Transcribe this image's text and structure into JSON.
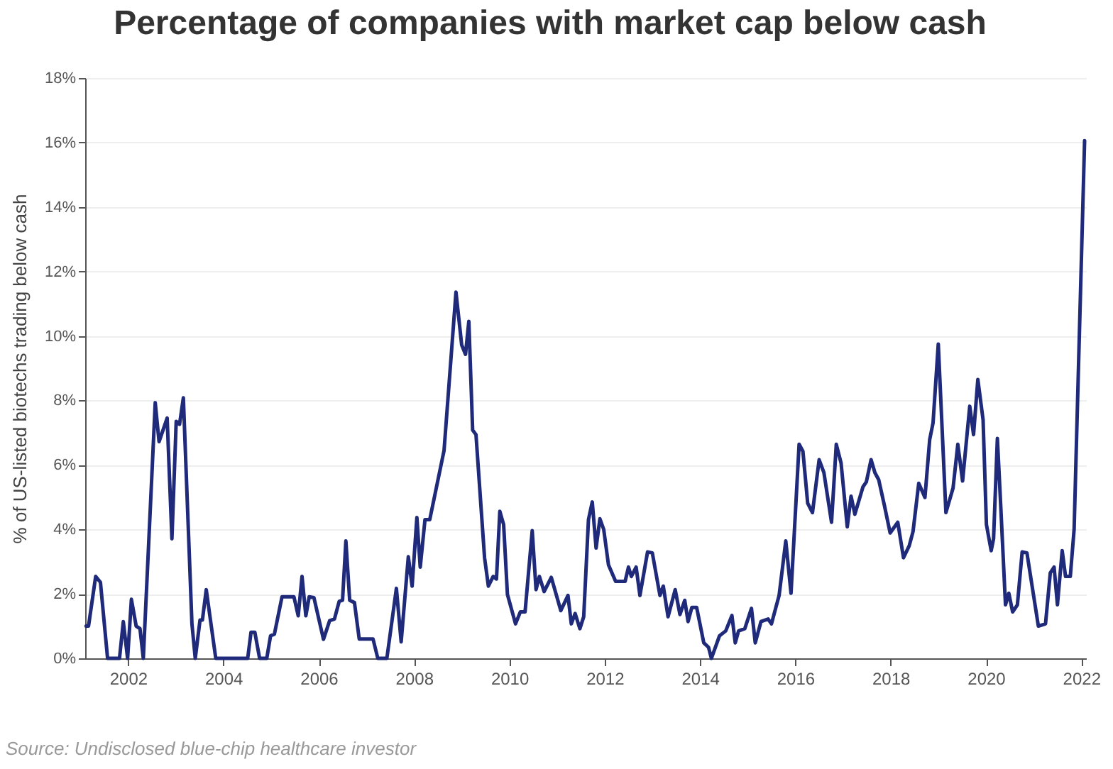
{
  "chart_data": {
    "type": "line",
    "title": "Percentage of companies with market cap below cash",
    "ylabel": "% of US-listed biotechs trading below cash",
    "annotations": [
      "Source: Undisclosed blue-chip healthcare investor"
    ],
    "xlim": [
      2001.1,
      2022.1
    ],
    "xticks": [
      2002,
      2004,
      2006,
      2008,
      2010,
      2012,
      2014,
      2016,
      2018,
      2020,
      2022
    ],
    "ylim": [
      0,
      18
    ],
    "yticks": [
      {
        "value": 0,
        "label": "0%"
      },
      {
        "value": 2,
        "label": "2%"
      },
      {
        "value": 4,
        "label": "4%"
      },
      {
        "value": 6,
        "label": "6%"
      },
      {
        "value": 8,
        "label": "8%"
      },
      {
        "value": 10,
        "label": "10%"
      },
      {
        "value": 12,
        "label": "12%"
      },
      {
        "value": 14,
        "label": "14%"
      },
      {
        "value": 16,
        "label": "16%"
      },
      {
        "value": 18,
        "label": "18%"
      }
    ],
    "grid": "y",
    "marker": "none",
    "line_style": "solid",
    "series": [
      {
        "color": "#1f2a7a",
        "x": [
          2001.12,
          2001.17,
          2001.32,
          2001.42,
          2001.57,
          2001.82,
          2001.9,
          2001.99,
          2002.07,
          2002.17,
          2002.25,
          2002.32,
          2002.57,
          2002.65,
          2002.82,
          2002.92,
          2003.01,
          2003.08,
          2003.16,
          2003.34,
          2003.41,
          2003.51,
          2003.56,
          2003.64,
          2003.84,
          2004.51,
          2004.58,
          2004.66,
          2004.76,
          2004.91,
          2004.99,
          2005.07,
          2005.23,
          2005.48,
          2005.57,
          2005.65,
          2005.73,
          2005.8,
          2005.9,
          2006.1,
          2006.23,
          2006.33,
          2006.43,
          2006.5,
          2006.57,
          2006.65,
          2006.75,
          2006.85,
          2007.14,
          2007.24,
          2007.43,
          2007.63,
          2007.73,
          2007.88,
          2007.96,
          2008.06,
          2008.13,
          2008.23,
          2008.33,
          2008.63,
          2008.88,
          2009.0,
          2009.08,
          2009.15,
          2009.23,
          2009.3,
          2009.48,
          2009.56,
          2009.66,
          2009.73,
          2009.8,
          2009.88,
          2009.96,
          2010.13,
          2010.23,
          2010.33,
          2010.48,
          2010.56,
          2010.63,
          2010.73,
          2010.88,
          2011.08,
          2011.23,
          2011.3,
          2011.38,
          2011.48,
          2011.56,
          2011.66,
          2011.74,
          2011.82,
          2011.9,
          2011.98,
          2012.08,
          2012.23,
          2012.43,
          2012.5,
          2012.56,
          2012.66,
          2012.74,
          2012.9,
          2013.0,
          2013.16,
          2013.23,
          2013.33,
          2013.48,
          2013.58,
          2013.68,
          2013.75,
          2013.83,
          2013.93,
          2014.08,
          2014.18,
          2014.24,
          2014.41,
          2014.54,
          2014.67,
          2014.74,
          2014.81,
          2014.94,
          2015.08,
          2015.16,
          2015.28,
          2015.43,
          2015.5,
          2015.66,
          2015.8,
          2015.91,
          2016.08,
          2016.16,
          2016.26,
          2016.36,
          2016.5,
          2016.6,
          2016.76,
          2016.86,
          2016.96,
          2017.09,
          2017.17,
          2017.25,
          2017.42,
          2017.49,
          2017.59,
          2017.67,
          2017.75,
          2017.87,
          2017.99,
          2018.15,
          2018.27,
          2018.39,
          2018.47,
          2018.59,
          2018.72,
          2018.82,
          2018.89,
          2019.0,
          2019.16,
          2019.31,
          2019.41,
          2019.51,
          2019.66,
          2019.74,
          2019.83,
          2019.94,
          2020.01,
          2020.11,
          2020.16,
          2020.24,
          2020.31,
          2020.41,
          2020.48,
          2020.56,
          2020.66,
          2020.76,
          2020.86,
          2021.1,
          2021.25,
          2021.35,
          2021.43,
          2021.5,
          2021.6,
          2021.67,
          2021.77,
          2021.85,
          2022.07
        ],
        "values": [
          1.0,
          1.0,
          2.54,
          2.36,
          0,
          0,
          1.14,
          0,
          1.83,
          1.0,
          0.92,
          0,
          7.93,
          6.72,
          7.45,
          3.71,
          7.35,
          7.26,
          8.08,
          1.07,
          0,
          1.19,
          1.19,
          2.13,
          0,
          0,
          0.81,
          0.81,
          0,
          0,
          0.7,
          0.75,
          1.91,
          1.91,
          1.32,
          2.54,
          1.32,
          1.91,
          1.88,
          0.59,
          1.17,
          1.22,
          1.77,
          1.8,
          3.64,
          1.8,
          1.73,
          0.6,
          0.6,
          0,
          0,
          2.17,
          0.51,
          3.15,
          2.24,
          4.37,
          2.83,
          4.3,
          4.3,
          6.45,
          11.36,
          9.72,
          9.43,
          10.45,
          7.08,
          6.94,
          3.12,
          2.24,
          2.54,
          2.46,
          4.56,
          4.15,
          1.98,
          1.07,
          1.44,
          1.44,
          3.96,
          2.13,
          2.54,
          2.07,
          2.51,
          1.48,
          1.95,
          1.07,
          1.39,
          0.92,
          1.29,
          4.3,
          4.85,
          3.42,
          4.33,
          4.0,
          2.9,
          2.39,
          2.39,
          2.83,
          2.54,
          2.83,
          1.95,
          3.3,
          3.27,
          1.95,
          2.24,
          1.29,
          2.13,
          1.36,
          1.8,
          1.14,
          1.58,
          1.58,
          0.48,
          0.34,
          0,
          0.7,
          0.85,
          1.33,
          0.48,
          0.85,
          0.92,
          1.55,
          0.48,
          1.14,
          1.22,
          1.07,
          1.95,
          3.64,
          2.02,
          6.64,
          6.42,
          4.81,
          4.52,
          6.16,
          5.76,
          4.22,
          6.64,
          6.06,
          4.08,
          5.03,
          4.47,
          5.32,
          5.47,
          6.16,
          5.76,
          5.54,
          4.74,
          3.89,
          4.22,
          3.12,
          3.49,
          3.93,
          5.43,
          4.99,
          6.79,
          7.3,
          9.75,
          4.52,
          5.28,
          6.64,
          5.5,
          7.82,
          6.94,
          8.65,
          7.4,
          4.15,
          3.34,
          3.71,
          6.82,
          4.74,
          1.66,
          2.02,
          1.44,
          1.66,
          3.3,
          3.27,
          1.0,
          1.07,
          2.65,
          2.83,
          1.66,
          3.34,
          2.54,
          2.54,
          4.0,
          16.06
        ]
      }
    ]
  }
}
